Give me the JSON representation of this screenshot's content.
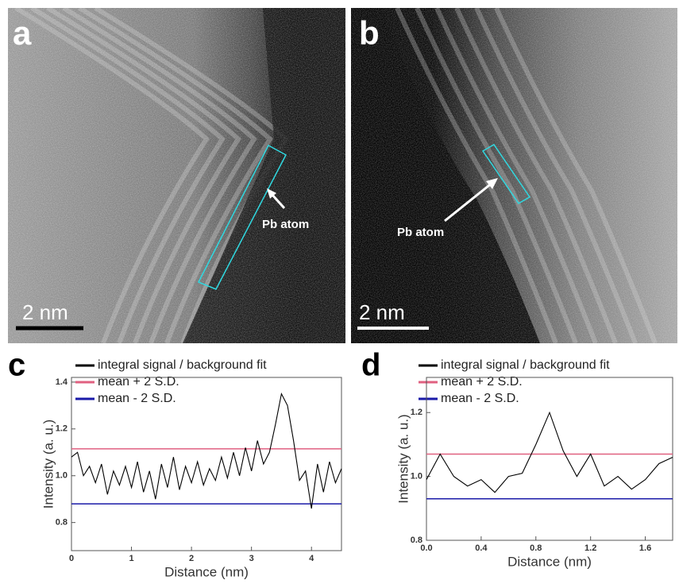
{
  "images": [
    {
      "label": "a",
      "scale_bar": "2 nm",
      "annotation": "Pb atom"
    },
    {
      "label": "b",
      "scale_bar": "2 nm",
      "annotation": "Pb atom"
    }
  ],
  "chart_data": [
    {
      "type": "line",
      "panel_label": "c",
      "x_label": "Distance (nm)",
      "y_label": "Intensity (a. u.)",
      "x": [
        0,
        0.1,
        0.2,
        0.3,
        0.4,
        0.5,
        0.6,
        0.7,
        0.8,
        0.9,
        1.0,
        1.1,
        1.2,
        1.3,
        1.4,
        1.5,
        1.6,
        1.7,
        1.8,
        1.9,
        2.0,
        2.1,
        2.2,
        2.3,
        2.4,
        2.5,
        2.6,
        2.7,
        2.8,
        2.9,
        3.0,
        3.1,
        3.2,
        3.3,
        3.4,
        3.5,
        3.6,
        3.7,
        3.8,
        3.9,
        4.0,
        4.1,
        4.2,
        4.3,
        4.4,
        4.5
      ],
      "series": [
        {
          "name": "integral signal / background fit",
          "color": "#000000",
          "values": [
            1.08,
            1.1,
            1.0,
            1.04,
            0.97,
            1.05,
            0.92,
            1.02,
            0.96,
            1.04,
            0.95,
            1.06,
            0.93,
            1.02,
            0.9,
            1.05,
            0.95,
            1.08,
            0.94,
            1.04,
            0.97,
            1.06,
            0.96,
            1.03,
            0.98,
            1.08,
            0.99,
            1.1,
            1.0,
            1.12,
            1.02,
            1.15,
            1.05,
            1.1,
            1.22,
            1.35,
            1.3,
            1.15,
            0.98,
            1.02,
            0.86,
            1.05,
            0.93,
            1.06,
            0.97,
            1.03
          ]
        },
        {
          "name": "mean + 2 S.D.",
          "color": "#e06080",
          "x": [
            0,
            4.5
          ],
          "values": [
            1.115,
            1.115
          ]
        },
        {
          "name": "mean -  2 S.D.",
          "color": "#1a1aa8",
          "x": [
            0,
            4.5
          ],
          "values": [
            0.88,
            0.88
          ]
        }
      ],
      "xlim": [
        0,
        4.5
      ],
      "xticks": [
        0,
        1,
        2,
        3,
        4
      ],
      "ylim": [
        0.68,
        1.42
      ],
      "yticks": [
        0.8,
        {
          "value": 1.0,
          "label": "1.0"
        },
        1.2,
        1.4
      ]
    },
    {
      "type": "line",
      "panel_label": "d",
      "x_label": "Distance (nm)",
      "y_label": "Intensity (a. u.)",
      "x": [
        0,
        0.1,
        0.2,
        0.3,
        0.4,
        0.5,
        0.6,
        0.7,
        0.8,
        0.9,
        1.0,
        1.1,
        1.2,
        1.3,
        1.4,
        1.5,
        1.6,
        1.7,
        1.8
      ],
      "series": [
        {
          "name": "integral signal / background fit",
          "color": "#000000",
          "values": [
            0.99,
            1.07,
            1.0,
            0.97,
            0.99,
            0.95,
            1.0,
            1.01,
            1.1,
            1.2,
            1.08,
            1.0,
            1.07,
            0.97,
            1.0,
            0.96,
            0.99,
            1.04,
            1.06
          ]
        },
        {
          "name": "mean + 2 S.D.",
          "color": "#e06080",
          "x": [
            0,
            1.8
          ],
          "values": [
            1.07,
            1.07
          ]
        },
        {
          "name": "mean -  2 S.D.",
          "color": "#1a1aa8",
          "x": [
            0,
            1.8
          ],
          "values": [
            0.93,
            0.93
          ]
        }
      ],
      "xlim": [
        0,
        1.8
      ],
      "xticks": [
        {
          "value": 0,
          "label": "0.0"
        },
        0.4,
        0.8,
        1.2,
        1.6
      ],
      "ylim": [
        0.8,
        1.31
      ],
      "yticks": [
        0.8,
        {
          "value": 1.0,
          "label": "1.0"
        },
        1.2
      ]
    }
  ]
}
